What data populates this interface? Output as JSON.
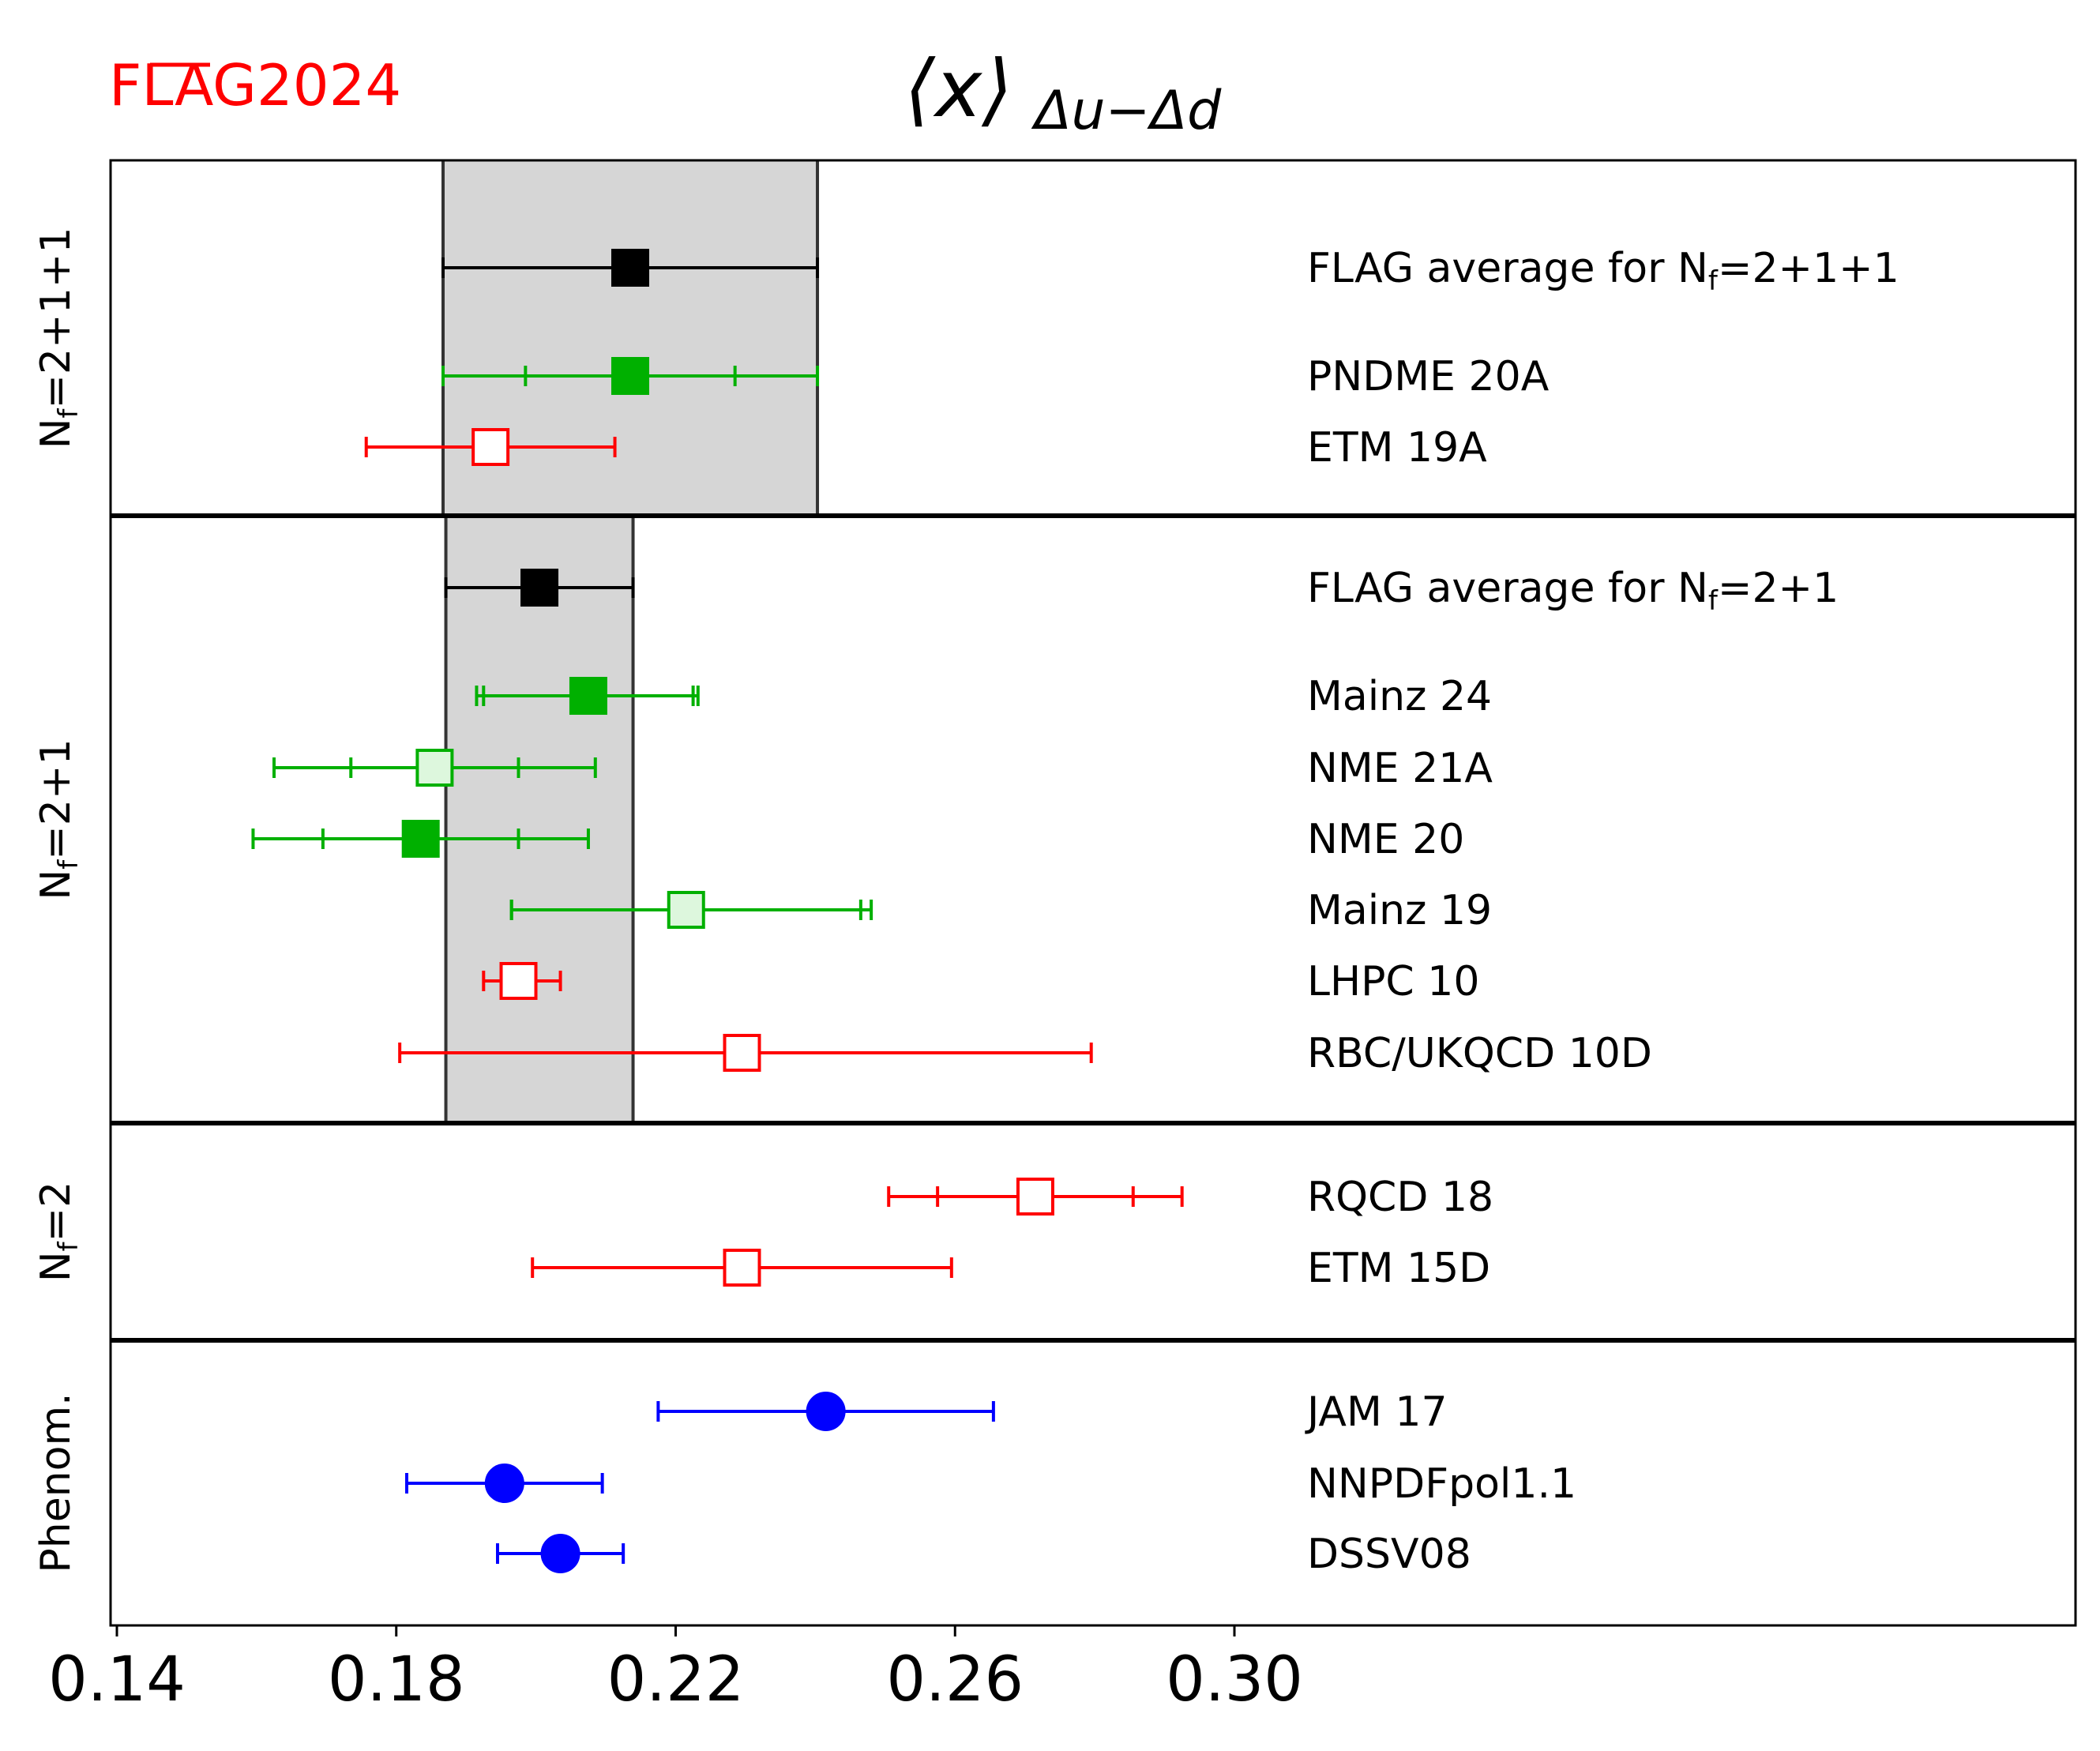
{
  "logo": {
    "brand": "FLAG",
    "year": "2024"
  },
  "chart_data": {
    "type": "forest",
    "title": {
      "main": "⟨x⟩",
      "sub": "Δu−Δd"
    },
    "xlim": [
      0.14,
      0.42
    ],
    "xticks": [
      0.14,
      0.18,
      0.22,
      0.26,
      0.3
    ],
    "tick_labels": [
      "0.14",
      "0.18",
      "0.22",
      "0.26",
      "0.30"
    ],
    "colors": {
      "black": "#000000",
      "green": "#00b000",
      "light_green": "#ddf7dd",
      "red": "#ff0000",
      "blue": "#0000ff",
      "band": "#d6d6d6"
    },
    "groups": [
      {
        "label": "Nf=2+1+1",
        "label_parts": [
          "N",
          "f",
          "=2+1+1"
        ],
        "band": [
          0.1867,
          0.2403
        ],
        "entries": [
          {
            "name": "FLAG average for Nf=2+1+1",
            "name_parts": [
              "FLAG average for N",
              "f",
              "=2+1+1"
            ],
            "value": 0.2135,
            "err_inner": null,
            "err_outer": [
              0.1867,
              0.2403
            ],
            "marker": "square",
            "color": "black",
            "fill": "filled"
          },
          {
            "name": "PNDME 20A",
            "value": 0.2135,
            "err_inner": [
              0.1985,
              0.2285
            ],
            "err_outer": [
              0.1867,
              0.2403
            ],
            "marker": "square",
            "color": "green",
            "fill": "filled"
          },
          {
            "name": "ETM 19A",
            "value": 0.1935,
            "err_inner": null,
            "err_outer": [
              0.1757,
              0.2113
            ],
            "marker": "square",
            "color": "red",
            "fill": "open"
          }
        ]
      },
      {
        "label": "Nf=2+1",
        "label_parts": [
          "N",
          "f",
          "=2+1"
        ],
        "band": [
          0.1871,
          0.2139
        ],
        "entries": [
          {
            "name": "FLAG average for Nf=2+1",
            "name_parts": [
              "FLAG average for N",
              "f",
              "=2+1"
            ],
            "value": 0.2005,
            "err_inner": null,
            "err_outer": [
              0.1871,
              0.2139
            ],
            "marker": "square",
            "color": "black",
            "fill": "filled"
          },
          {
            "name": "Mainz 24",
            "value": 0.2075,
            "err_inner": [
              0.1925,
              0.2225
            ],
            "err_outer": [
              0.1915,
              0.2232
            ],
            "marker": "square",
            "color": "green",
            "fill": "filled"
          },
          {
            "name": "NME 21A",
            "value": 0.1855,
            "err_inner": [
              0.1735,
              0.1975
            ],
            "err_outer": [
              0.1625,
              0.2085
            ],
            "marker": "square",
            "color": "green",
            "fill": "light"
          },
          {
            "name": "NME 20",
            "value": 0.1835,
            "err_inner": [
              0.1695,
              0.1975
            ],
            "err_outer": [
              0.1595,
              0.2075
            ],
            "marker": "square",
            "color": "green",
            "fill": "filled"
          },
          {
            "name": "Mainz 19",
            "value": 0.2215,
            "err_inner": [
              0.1965,
              0.2465
            ],
            "err_outer": [
              0.1965,
              0.248
            ],
            "marker": "square",
            "color": "green",
            "fill": "light"
          },
          {
            "name": "LHPC 10",
            "value": 0.1975,
            "err_inner": null,
            "err_outer": [
              0.1925,
              0.2035
            ],
            "marker": "square",
            "color": "red",
            "fill": "open"
          },
          {
            "name": "RBC/UKQCD 10D",
            "value": 0.2295,
            "err_inner": null,
            "err_outer": [
              0.1805,
              0.2795
            ],
            "marker": "square",
            "color": "red",
            "fill": "open"
          }
        ]
      },
      {
        "label": "Nf=2",
        "label_parts": [
          "N",
          "f",
          "=2"
        ],
        "band": null,
        "entries": [
          {
            "name": "RQCD 18",
            "value": 0.2715,
            "err_inner": [
              0.2575,
              0.2855
            ],
            "err_outer": [
              0.2505,
              0.2925
            ],
            "marker": "square",
            "color": "red",
            "fill": "open"
          },
          {
            "name": "ETM 15D",
            "value": 0.2295,
            "err_inner": null,
            "err_outer": [
              0.1995,
              0.2595
            ],
            "marker": "square",
            "color": "red",
            "fill": "open"
          }
        ]
      },
      {
        "label": "Phenom.",
        "label_parts": [
          "Phenom.",
          "",
          ""
        ],
        "band": null,
        "entries": [
          {
            "name": "JAM 17",
            "value": 0.2415,
            "err_inner": null,
            "err_outer": [
              0.2175,
              0.2655
            ],
            "marker": "circle",
            "color": "blue",
            "fill": "filled"
          },
          {
            "name": "NNPDFpol1.1",
            "value": 0.1955,
            "err_inner": null,
            "err_outer": [
              0.1815,
              0.2095
            ],
            "marker": "circle",
            "color": "blue",
            "fill": "filled"
          },
          {
            "name": "DSSV08",
            "value": 0.2035,
            "err_inner": null,
            "err_outer": [
              0.1945,
              0.2125
            ],
            "marker": "circle",
            "color": "blue",
            "fill": "filled"
          }
        ]
      }
    ]
  }
}
